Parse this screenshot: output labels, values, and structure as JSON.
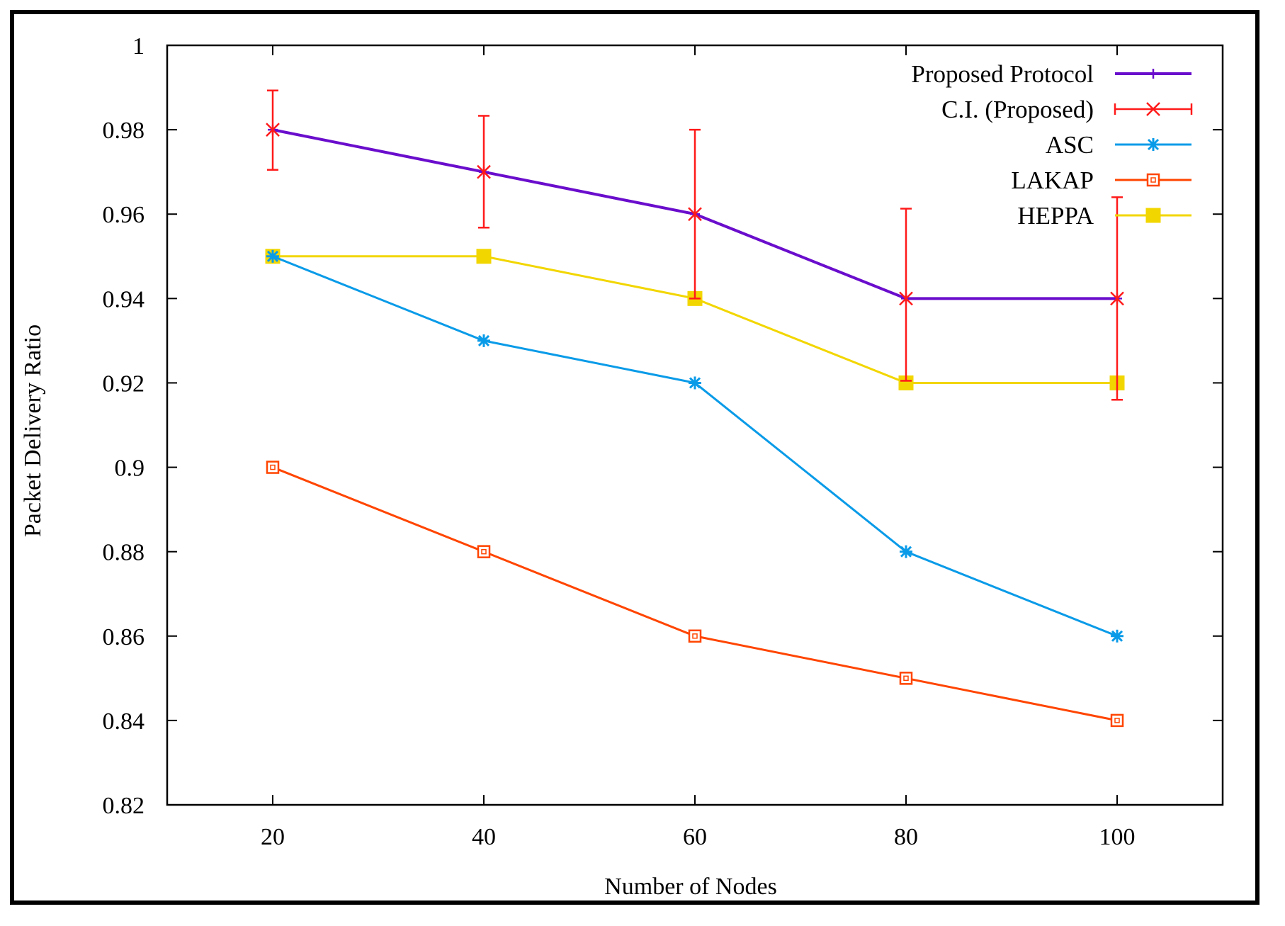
{
  "chart_data": {
    "type": "line",
    "title": "",
    "xlabel": "Number of Nodes",
    "ylabel": "Packet Delivery Ratio",
    "x": [
      20,
      40,
      60,
      80,
      100
    ],
    "xlim": [
      10,
      110
    ],
    "ylim": [
      0.82,
      1
    ],
    "xticks": [
      "20",
      "40",
      "60",
      "80",
      "100"
    ],
    "yticks": [
      "0.82",
      "0.84",
      "0.86",
      "0.88",
      "0.9",
      "0.92",
      "0.94",
      "0.96",
      "0.98",
      "1"
    ],
    "grid": false,
    "legend_position": "top-right",
    "series": [
      {
        "name": "Proposed Protocol",
        "values": [
          0.98,
          0.97,
          0.96,
          0.94,
          0.94
        ],
        "color": "#6a0dcc",
        "marker": "plus"
      },
      {
        "name": "C.I. (Proposed)",
        "values": [
          0.98,
          0.97,
          0.96,
          0.94,
          0.94
        ],
        "lower": [
          0.9705,
          0.9568,
          0.94,
          0.9205,
          0.916
        ],
        "upper": [
          0.9893,
          0.9833,
          0.98,
          0.9613,
          0.964
        ],
        "color": "#ff1a1a",
        "marker": "cross",
        "errorbars": true
      },
      {
        "name": "ASC",
        "values": [
          0.95,
          0.93,
          0.92,
          0.88,
          0.86
        ],
        "color": "#0a9be8",
        "marker": "star"
      },
      {
        "name": "LAKAP",
        "values": [
          0.9,
          0.88,
          0.86,
          0.85,
          0.84
        ],
        "color": "#ff4500",
        "marker": "hollow-square"
      },
      {
        "name": "HEPPA",
        "values": [
          0.95,
          0.95,
          0.94,
          0.92,
          0.92
        ],
        "color": "#f2d600",
        "marker": "filled-square"
      }
    ]
  }
}
